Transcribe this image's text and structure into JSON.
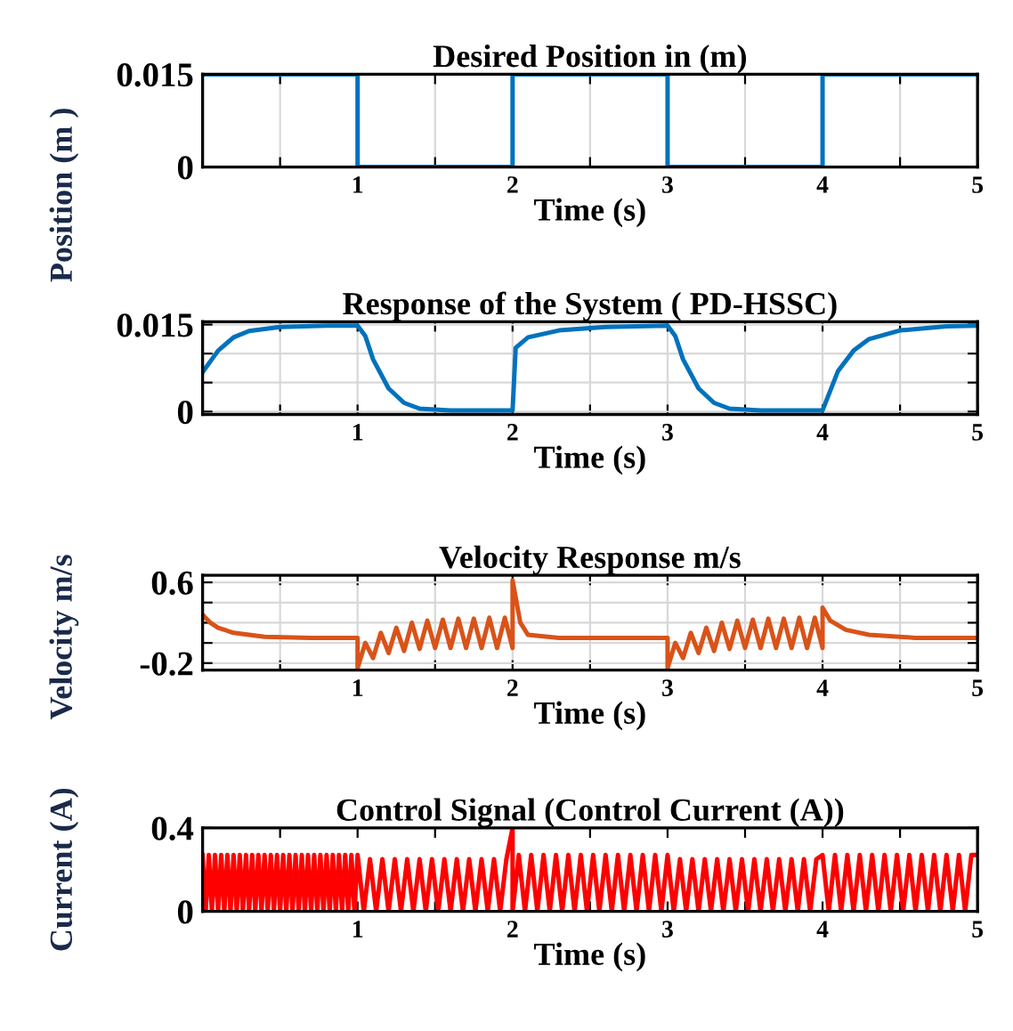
{
  "chart_data": [
    {
      "type": "line",
      "title": "Desired Position in (m)",
      "xlabel": "Time (s)",
      "ylabel": "Position (m )",
      "xlim": [
        0,
        5
      ],
      "ylim": [
        0,
        0.015
      ],
      "xticks": [
        {
          "value": 0.5,
          "label": null
        },
        1,
        {
          "value": 1.5,
          "label": null
        },
        2,
        {
          "value": 2.5,
          "label": null
        },
        3,
        {
          "value": 3.5,
          "label": null
        },
        4,
        {
          "value": 4.5,
          "label": null
        },
        5
      ],
      "yticks": [
        0,
        0.015
      ],
      "grid": "x",
      "series": [
        {
          "color": "#0072bd",
          "x": [
            0,
            1,
            1,
            2,
            2,
            3,
            3,
            4,
            4,
            5
          ],
          "values": [
            0.015,
            0.015,
            0,
            0,
            0.015,
            0.015,
            0,
            0,
            0.015,
            0.015
          ]
        }
      ]
    },
    {
      "type": "line",
      "title": "Response of the System ( PD-HSSC)",
      "xlabel": "Time (s)",
      "xlim": [
        0,
        5
      ],
      "ylim": [
        -0.0005,
        0.0155
      ],
      "xticks": [
        {
          "value": 0.5,
          "label": null
        },
        1,
        {
          "value": 1.5,
          "label": null
        },
        2,
        {
          "value": 2.5,
          "label": null
        },
        3,
        {
          "value": 3.5,
          "label": null
        },
        4,
        {
          "value": 4.5,
          "label": null
        },
        5
      ],
      "yticks": [
        0,
        {
          "value": 0.005,
          "label": null
        },
        {
          "value": 0.01,
          "label": null
        },
        0.015
      ],
      "grid": true,
      "series": [
        {
          "color": "#0072bd",
          "x": [
            0,
            0.1,
            0.2,
            0.3,
            0.5,
            0.8,
            1.0,
            1.05,
            1.1,
            1.2,
            1.3,
            1.4,
            1.6,
            2.0,
            2.02,
            2.1,
            2.3,
            2.6,
            3.0,
            3.05,
            3.1,
            3.2,
            3.3,
            3.4,
            3.6,
            4.0,
            4.1,
            4.2,
            4.3,
            4.5,
            4.8,
            5.0
          ],
          "values": [
            0.0068,
            0.0105,
            0.0128,
            0.0139,
            0.0146,
            0.0148,
            0.0148,
            0.013,
            0.009,
            0.004,
            0.0015,
            0.0005,
            0.0002,
            0.0002,
            0.011,
            0.0128,
            0.014,
            0.0146,
            0.0148,
            0.013,
            0.009,
            0.004,
            0.0015,
            0.0005,
            0.0002,
            0.0002,
            0.007,
            0.0105,
            0.0125,
            0.014,
            0.0147,
            0.0148
          ]
        }
      ]
    },
    {
      "type": "line",
      "title": "Velocity Response m/s",
      "xlabel": "Time (s)",
      "ylabel": "Velocity m/s",
      "xlim": [
        0,
        5
      ],
      "ylim": [
        -0.27,
        0.67
      ],
      "xticks": [
        {
          "value": 0.5,
          "label": null
        },
        1,
        {
          "value": 1.5,
          "label": null
        },
        2,
        {
          "value": 2.5,
          "label": null
        },
        3,
        {
          "value": 3.5,
          "label": null
        },
        4,
        {
          "value": 4.5,
          "label": null
        },
        5
      ],
      "yticks": [
        -0.2,
        {
          "value": 0,
          "label": null
        },
        {
          "value": 0.2,
          "label": null
        },
        {
          "value": 0.4,
          "label": null
        },
        0.6
      ],
      "grid": true,
      "series": [
        {
          "color": "#d95319",
          "x": [
            0,
            0.05,
            0.1,
            0.2,
            0.4,
            0.7,
            1.0,
            1.0,
            1.05,
            1.1,
            1.15,
            1.2,
            1.25,
            1.3,
            1.35,
            1.4,
            1.45,
            1.5,
            1.55,
            1.6,
            1.65,
            1.7,
            1.75,
            1.8,
            1.85,
            1.9,
            1.95,
            2.0,
            2.0,
            2.05,
            2.1,
            2.3,
            3.0,
            3.0,
            3.05,
            3.1,
            3.15,
            3.2,
            3.25,
            3.3,
            3.35,
            3.4,
            3.45,
            3.5,
            3.55,
            3.6,
            3.65,
            3.7,
            3.75,
            3.8,
            3.85,
            3.9,
            3.95,
            4.0,
            4.0,
            4.05,
            4.15,
            4.3,
            4.6,
            5.0
          ],
          "values": [
            0.28,
            0.2,
            0.15,
            0.1,
            0.06,
            0.05,
            0.05,
            -0.25,
            0.0,
            -0.15,
            0.1,
            -0.1,
            0.15,
            -0.08,
            0.2,
            -0.06,
            0.22,
            -0.05,
            0.23,
            -0.05,
            0.24,
            -0.05,
            0.24,
            -0.05,
            0.25,
            -0.05,
            0.25,
            -0.05,
            0.62,
            0.2,
            0.08,
            0.05,
            0.05,
            -0.25,
            0.0,
            -0.15,
            0.1,
            -0.1,
            0.15,
            -0.08,
            0.2,
            -0.06,
            0.22,
            -0.05,
            0.23,
            -0.05,
            0.24,
            -0.05,
            0.24,
            -0.05,
            0.25,
            -0.05,
            0.25,
            -0.05,
            0.35,
            0.22,
            0.13,
            0.08,
            0.05,
            0.05
          ]
        }
      ]
    },
    {
      "type": "line",
      "title": "Control Signal (Control Current (A))",
      "xlabel": "Time (s)",
      "ylabel": "Current (A)",
      "xlim": [
        0,
        5
      ],
      "ylim": [
        0,
        0.4
      ],
      "xticks": [
        {
          "value": 0.5,
          "label": null
        },
        1,
        {
          "value": 1.5,
          "label": null
        },
        2,
        {
          "value": 2.5,
          "label": null
        },
        3,
        {
          "value": 3.5,
          "label": null
        },
        4,
        {
          "value": 4.5,
          "label": null
        },
        5
      ],
      "yticks": [
        0,
        0.4
      ],
      "grid": false,
      "series": [
        {
          "color": "#ff0000",
          "x": [
            0,
            0.02,
            0.04,
            0.06,
            0.08,
            0.1,
            0.12,
            0.14,
            0.16,
            0.18,
            0.2,
            0.22,
            0.24,
            0.26,
            0.28,
            0.3,
            0.32,
            0.34,
            0.36,
            0.38,
            0.4,
            0.42,
            0.44,
            0.46,
            0.48,
            0.5,
            0.52,
            0.54,
            0.56,
            0.58,
            0.6,
            0.62,
            0.64,
            0.66,
            0.68,
            0.7,
            0.72,
            0.74,
            0.76,
            0.78,
            0.8,
            0.82,
            0.84,
            0.86,
            0.88,
            0.9,
            0.92,
            0.94,
            0.96,
            0.98,
            1.0,
            1.04,
            1.08,
            1.12,
            1.16,
            1.2,
            1.24,
            1.28,
            1.32,
            1.36,
            1.4,
            1.44,
            1.48,
            1.52,
            1.56,
            1.6,
            1.64,
            1.68,
            1.72,
            1.76,
            1.8,
            1.84,
            1.88,
            1.92,
            1.96,
            2.0,
            2.0,
            2.04,
            2.08,
            2.12,
            2.16,
            2.2,
            2.24,
            2.28,
            2.32,
            2.36,
            2.4,
            2.44,
            2.48,
            2.52,
            2.56,
            2.6,
            2.64,
            2.68,
            2.72,
            2.76,
            2.8,
            2.84,
            2.88,
            2.92,
            2.96,
            3.0,
            3.04,
            3.08,
            3.12,
            3.16,
            3.2,
            3.24,
            3.28,
            3.32,
            3.36,
            3.4,
            3.44,
            3.48,
            3.52,
            3.56,
            3.6,
            3.64,
            3.68,
            3.72,
            3.76,
            3.8,
            3.84,
            3.88,
            3.92,
            3.96,
            4.0,
            4.04,
            4.08,
            4.12,
            4.16,
            4.2,
            4.24,
            4.28,
            4.32,
            4.36,
            4.4,
            4.44,
            4.48,
            4.52,
            4.56,
            4.6,
            4.64,
            4.68,
            4.72,
            4.76,
            4.8,
            4.84,
            4.88,
            4.92,
            4.96,
            5.0
          ],
          "values": [
            0.27,
            0,
            0.27,
            0,
            0.27,
            0,
            0.27,
            0,
            0.27,
            0,
            0.27,
            0,
            0.27,
            0,
            0.27,
            0,
            0.27,
            0,
            0.27,
            0,
            0.27,
            0,
            0.27,
            0,
            0.27,
            0,
            0.27,
            0,
            0.27,
            0,
            0.27,
            0,
            0.27,
            0,
            0.27,
            0,
            0.27,
            0,
            0.27,
            0,
            0.27,
            0,
            0.27,
            0,
            0.27,
            0,
            0.27,
            0,
            0.27,
            0,
            0.27,
            0,
            0.25,
            0,
            0.25,
            0,
            0.25,
            0,
            0.25,
            0,
            0.25,
            0,
            0.25,
            0,
            0.25,
            0,
            0.25,
            0,
            0.25,
            0,
            0.25,
            0,
            0.25,
            0,
            0.25,
            0.4,
            0,
            0.27,
            0,
            0.27,
            0,
            0.27,
            0,
            0.27,
            0,
            0.27,
            0,
            0.27,
            0,
            0.27,
            0,
            0.27,
            0,
            0.27,
            0,
            0.27,
            0,
            0.27,
            0,
            0.27,
            0,
            0.27,
            0,
            0.25,
            0,
            0.25,
            0,
            0.25,
            0,
            0.25,
            0,
            0.25,
            0,
            0.25,
            0,
            0.25,
            0,
            0.25,
            0,
            0.25,
            0,
            0.25,
            0,
            0.25,
            0,
            0.25,
            0.27,
            0,
            0.27,
            0,
            0.27,
            0,
            0.27,
            0,
            0.27,
            0,
            0.27,
            0,
            0.27,
            0,
            0.27,
            0,
            0.27,
            0,
            0.27,
            0,
            0.27,
            0,
            0.27,
            0,
            0.27,
            0.27
          ]
        }
      ]
    }
  ]
}
